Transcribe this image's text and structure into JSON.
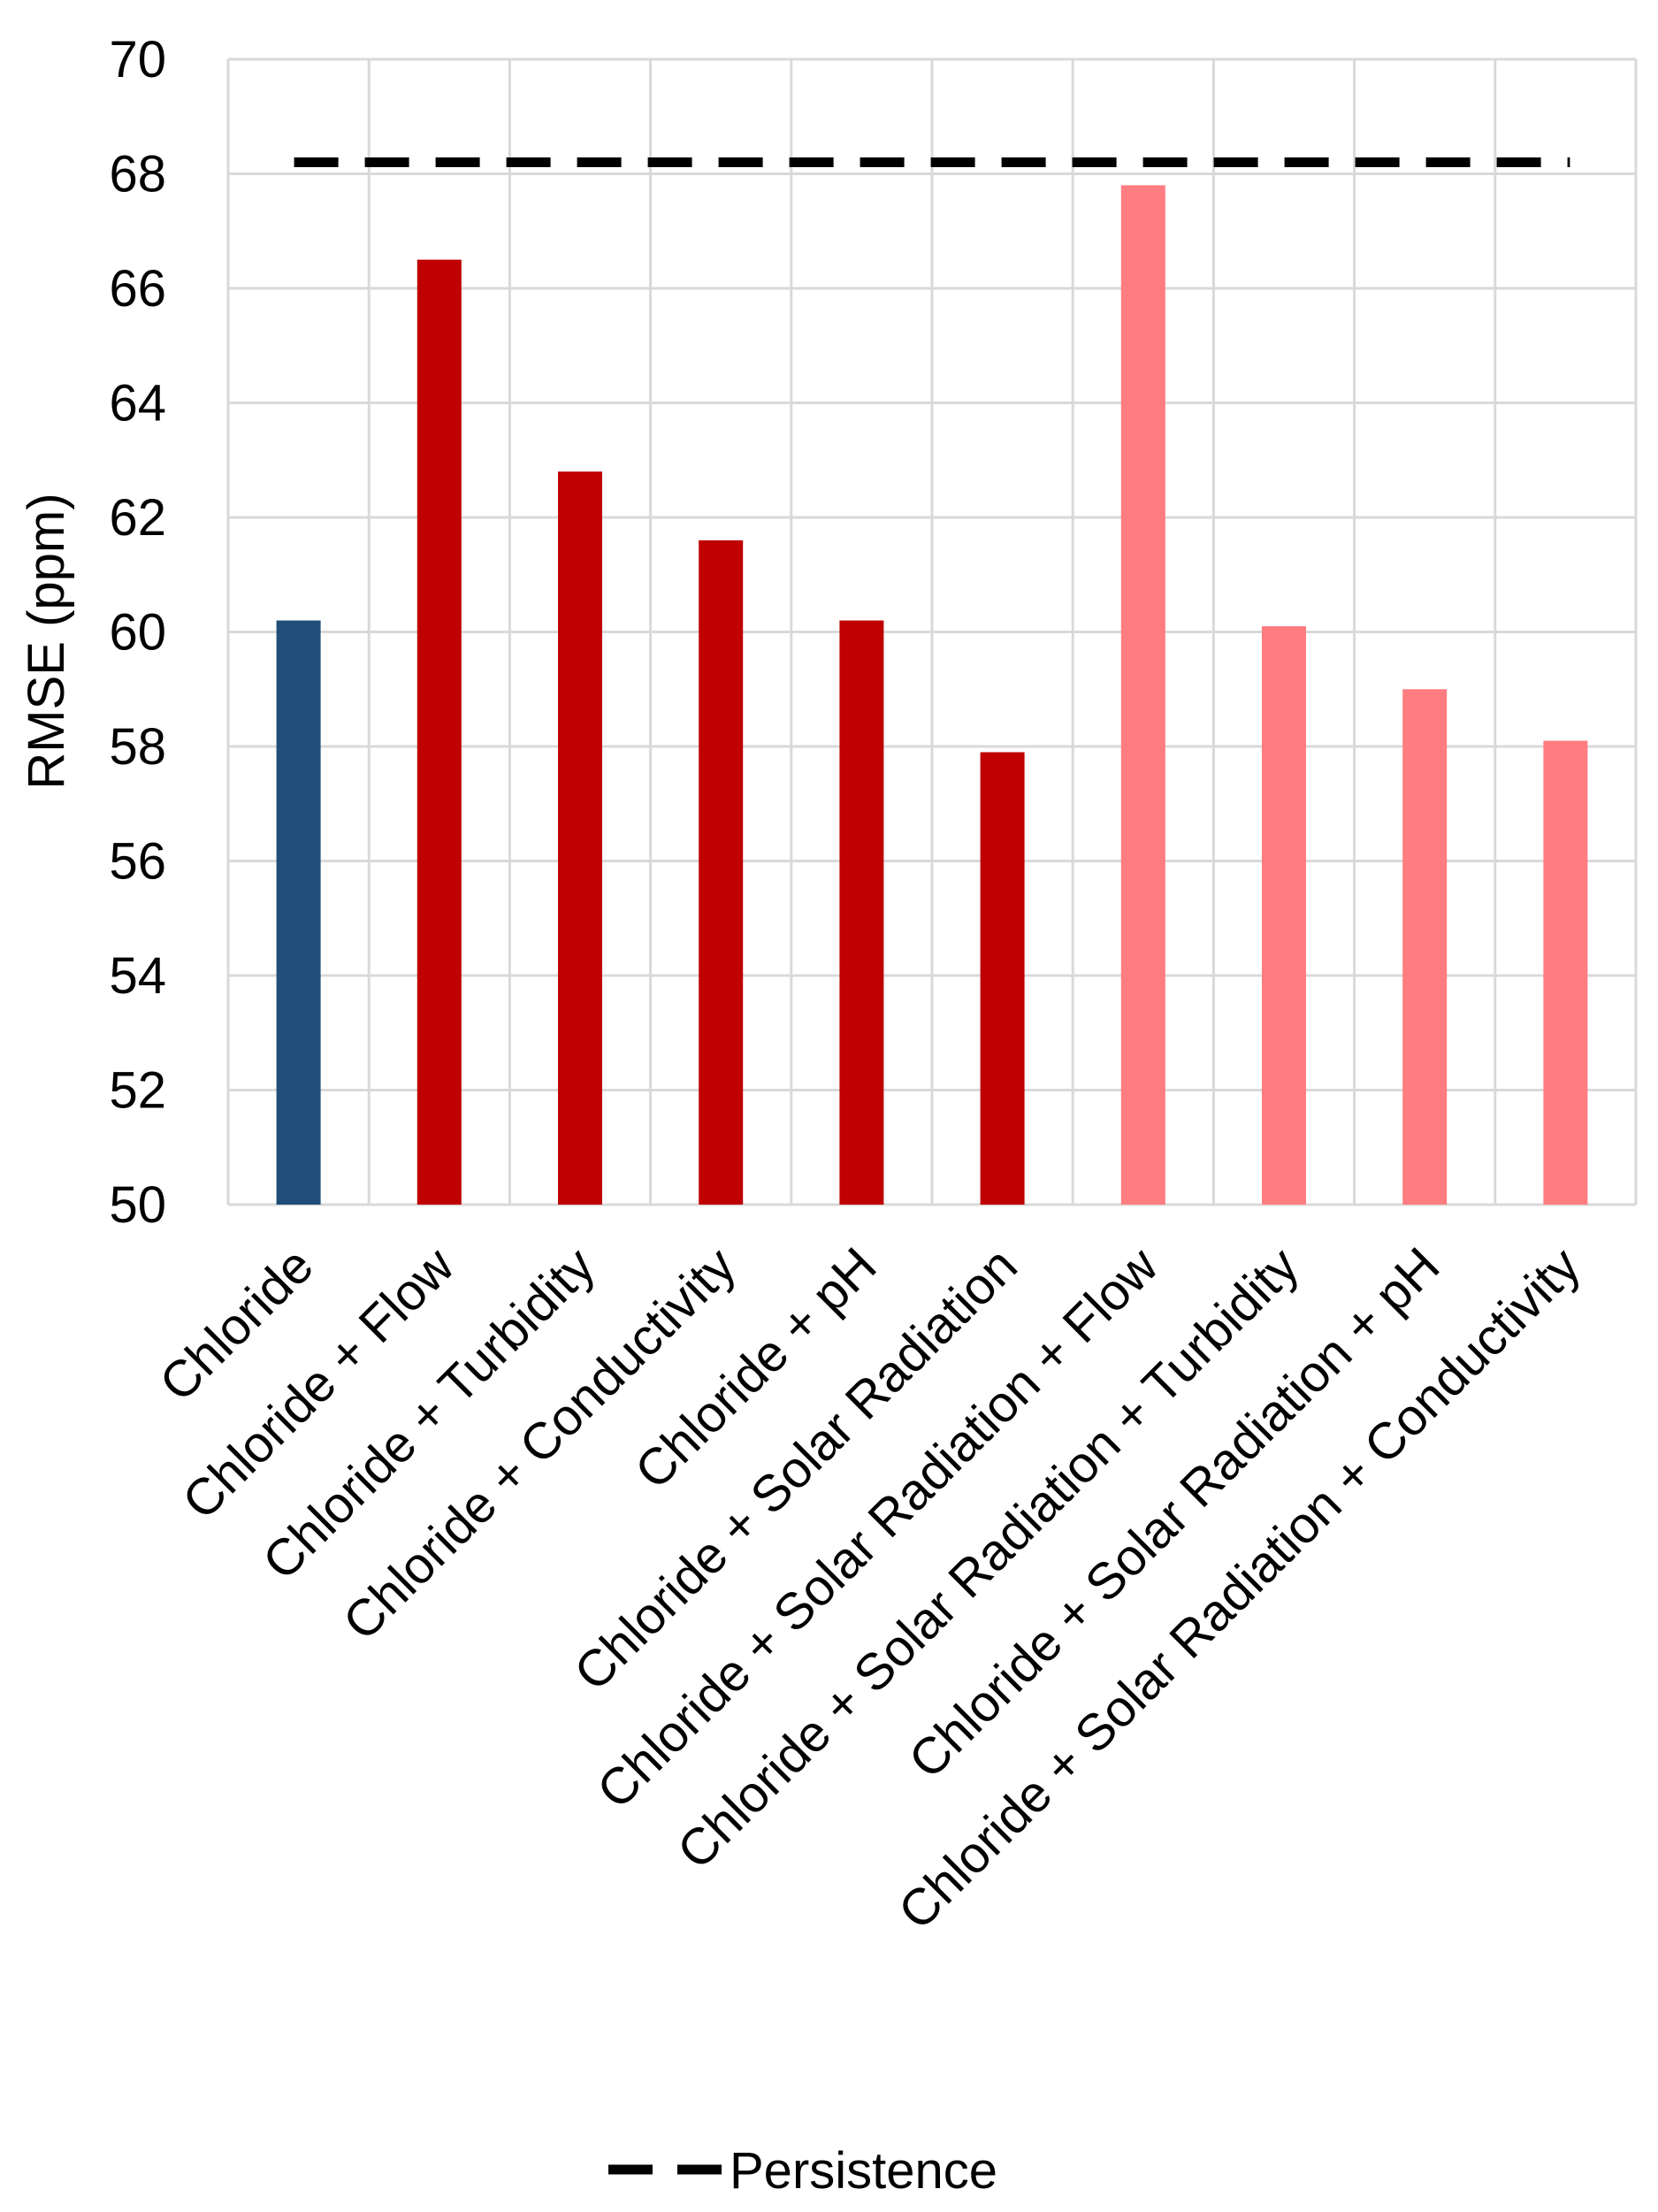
{
  "chart_data": {
    "type": "bar",
    "ylabel": "RMSE (ppm)",
    "xlabel": "",
    "ylim": [
      50,
      70
    ],
    "yticks": [
      50,
      52,
      54,
      56,
      58,
      60,
      62,
      64,
      66,
      68,
      70
    ],
    "grid": true,
    "categories": [
      "Chloride",
      "Chloride + Flow",
      "Chloride + Turbidity",
      "Chloride + Conductivity",
      "Chloride + pH",
      "Chloride + Solar Radiation",
      "Chloride + Solar Radiation + Flow",
      "Chloride + Solar Radiation + Turbidity",
      "Chloride + Solar Radiation + pH",
      "Chloride + Solar Radiation + Conductivity"
    ],
    "values": [
      60.2,
      66.5,
      62.8,
      61.6,
      60.2,
      57.9,
      67.8,
      60.1,
      59.0,
      58.1
    ],
    "bar_colors": [
      "#1f4e79",
      "#c00000",
      "#c00000",
      "#c00000",
      "#c00000",
      "#c00000",
      "#ff7c80",
      "#ff7c80",
      "#ff7c80",
      "#ff7c80"
    ],
    "reference_line": {
      "name": "Persistence",
      "value": 68.2,
      "color": "#000000",
      "style": "dashed"
    },
    "legend": {
      "position": "bottom",
      "entries": [
        "Persistence"
      ]
    }
  }
}
